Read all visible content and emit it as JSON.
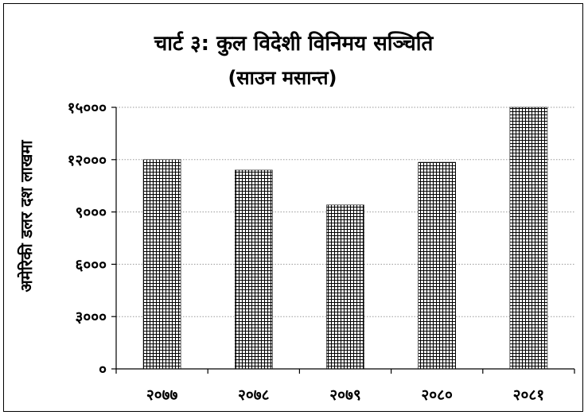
{
  "chart_data": {
    "type": "bar",
    "title": "चार्ट ३: कुल विदेशी विनिमय सञ्चिति",
    "subtitle": "(साउन मसान्त)",
    "ylabel": "अमेरिकी डलर दश लाखमा",
    "xlabel": "",
    "categories": [
      "२०७७",
      "२०७८",
      "२०७९",
      "२०८०",
      "२०८१"
    ],
    "values": [
      12000,
      11400,
      9400,
      11850,
      15000
    ],
    "ylim": [
      0,
      15000
    ],
    "yticks": [
      0,
      3000,
      6000,
      9000,
      12000,
      15000
    ],
    "ytick_labels": [
      "०",
      "३०००",
      "६०००",
      "९०००",
      "१२०००",
      "१५०००"
    ],
    "grid": true,
    "legend": "none",
    "bar_pattern": "crosshatch-grid",
    "colors": {
      "bar_line": "#000000",
      "grid": "#9a9a9a"
    }
  }
}
